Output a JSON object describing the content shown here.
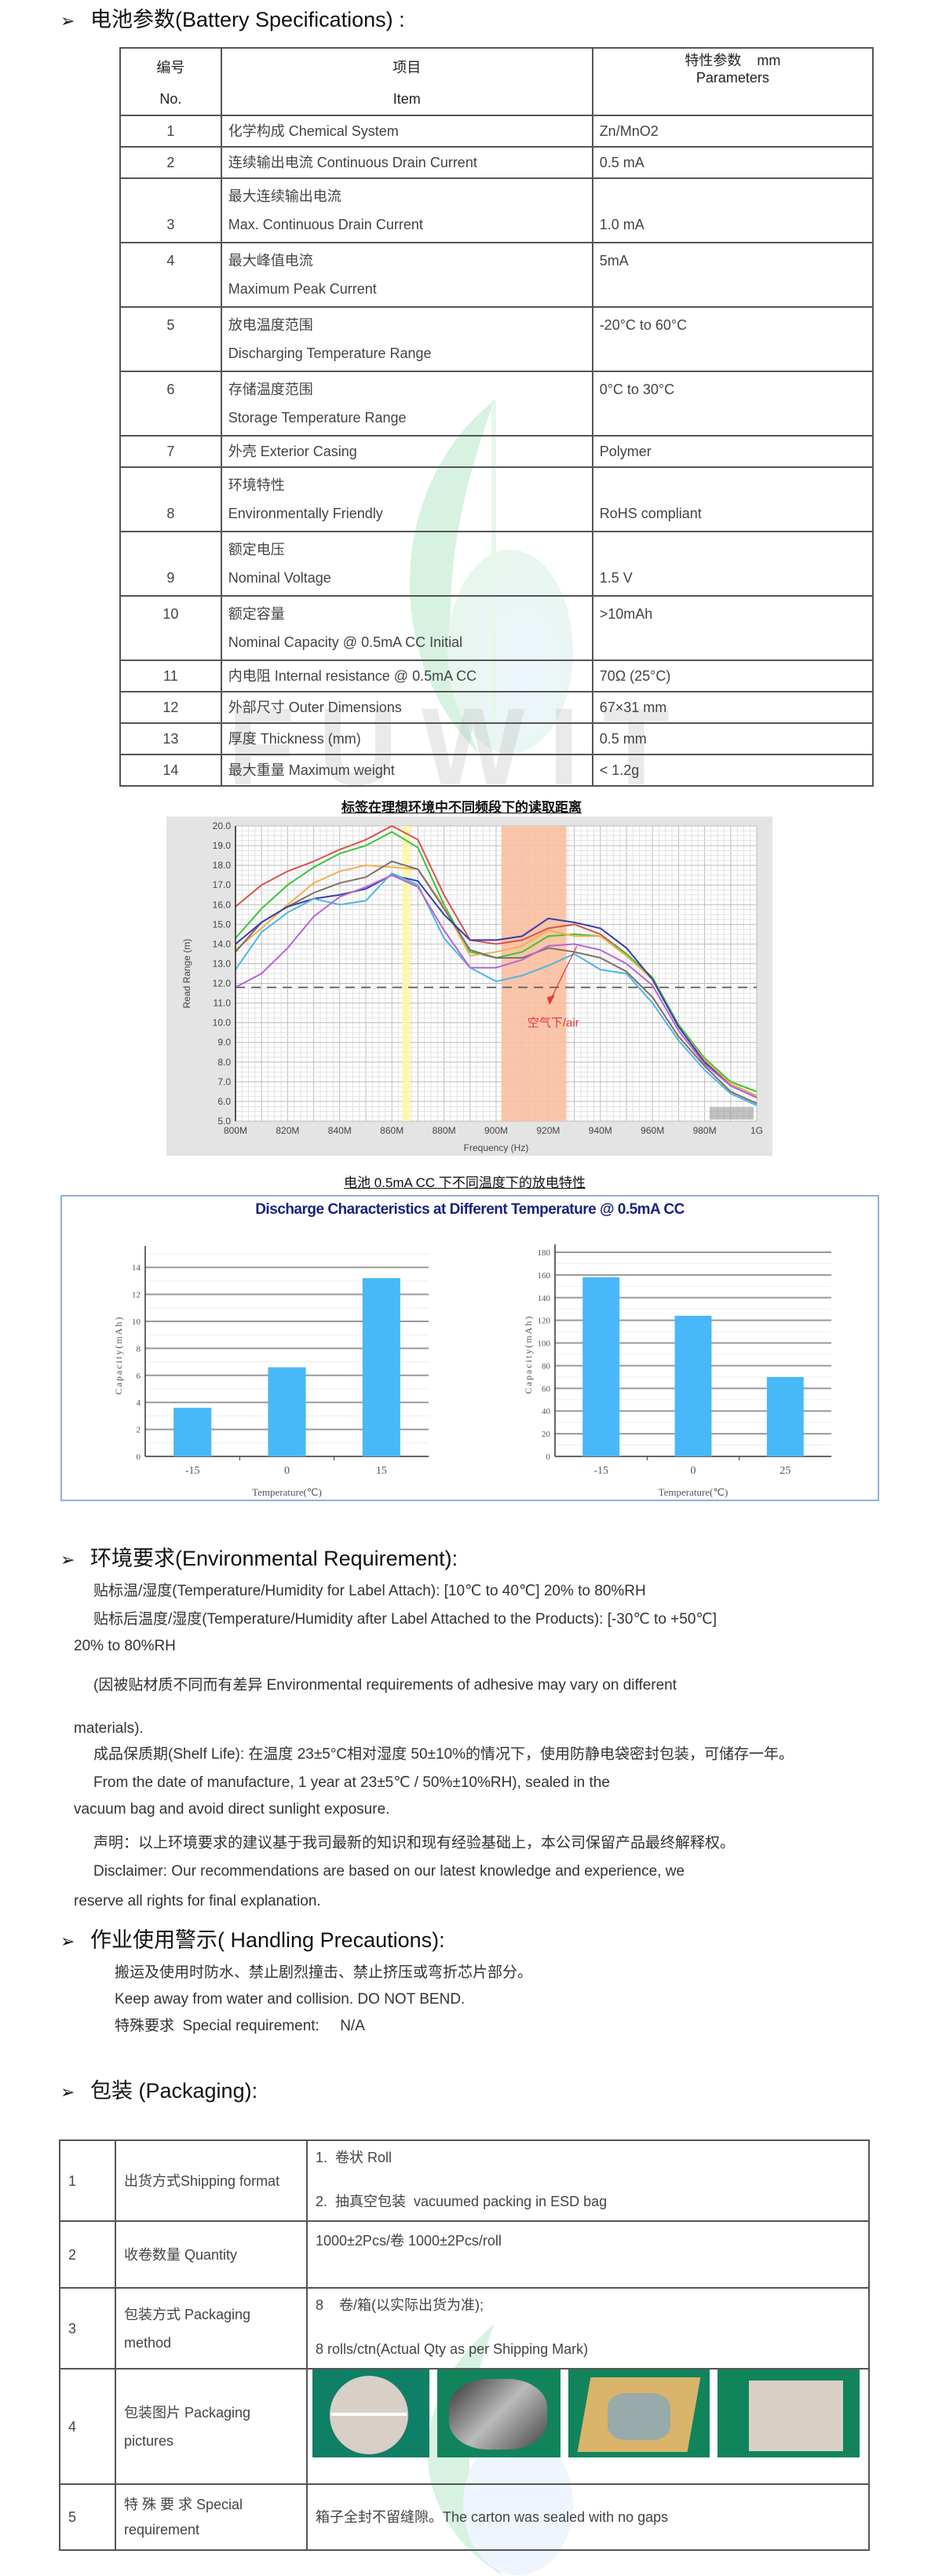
{
  "watermark": {
    "text": "FUWIT",
    "colors": [
      "#7fd49a",
      "#9cc8f0"
    ]
  },
  "battery": {
    "heading": "电池参数(Battery Specifications) :",
    "header": {
      "no_cn": "编号",
      "no_en": "No.",
      "item_cn": "项目",
      "item_en": "Item",
      "param_cn": "特性参数    mm",
      "param_en": "Parameters"
    },
    "rows": [
      {
        "no": "1",
        "item": [
          "化学构成 Chemical System"
        ],
        "value": "Zn/MnO2"
      },
      {
        "no": "2",
        "item": [
          "连续输出电流 Continuous Drain Current"
        ],
        "value": "0.5 mA"
      },
      {
        "no": "3",
        "item": [
          "最大连续输出电流",
          "Max. Continuous Drain Current"
        ],
        "value": "1.0 mA"
      },
      {
        "no": "4",
        "item": [
          "最大峰值电流",
          "Maximum Peak Current"
        ],
        "value": "5mA"
      },
      {
        "no": "5",
        "item": [
          "放电温度范围",
          "Discharging Temperature Range"
        ],
        "value": "-20°C to 60°C"
      },
      {
        "no": "6",
        "item": [
          "存储温度范围",
          "Storage Temperature Range"
        ],
        "value": "0°C to 30°C"
      },
      {
        "no": "7",
        "item": [
          "外壳 Exterior Casing"
        ],
        "value": "Polymer"
      },
      {
        "no": "8",
        "item": [
          "环境特性",
          "Environmentally Friendly"
        ],
        "value": "RoHS compliant"
      },
      {
        "no": "9",
        "item": [
          "额定电压",
          "Nominal Voltage"
        ],
        "value": "1.5 V"
      },
      {
        "no": "10",
        "item": [
          "额定容量",
          "Nominal Capacity @ 0.5mA CC Initial"
        ],
        "value": ">10mAh"
      },
      {
        "no": "11",
        "item": [
          "内电阻  Internal resistance @ 0.5mA CC"
        ],
        "value": "70Ω (25°C)"
      },
      {
        "no": "12",
        "item": [
          "外部尺寸 Outer Dimensions"
        ],
        "value": "67×31 mm"
      },
      {
        "no": "13",
        "item": [
          "厚度 Thickness (mm)"
        ],
        "value": "0.5 mm"
      },
      {
        "no": "14",
        "item": [
          "最大重量 Maximum weight"
        ],
        "value": "< 1.2g"
      }
    ]
  },
  "chart_data": [
    {
      "type": "line",
      "title": "标签在理想环境中不同频段下的读取距离",
      "xlabel": "Frequency (Hz)",
      "ylabel": "Read Range (m)",
      "x": [
        800,
        810,
        820,
        830,
        840,
        850,
        860,
        870,
        880,
        890,
        900,
        910,
        920,
        930,
        940,
        950,
        960,
        970,
        980,
        990,
        1000
      ],
      "xticks": [
        "800M",
        "820M",
        "840M",
        "860M",
        "880M",
        "900M",
        "920M",
        "940M",
        "960M",
        "980M",
        "1G"
      ],
      "xlim": [
        800,
        1000
      ],
      "ylim": [
        5,
        20
      ],
      "yticks": [
        "5.0",
        "6.0",
        "7.0",
        "8.0",
        "9.0",
        "10.0",
        "11.0",
        "12.0",
        "13.0",
        "14.0",
        "15.0",
        "16.0",
        "17.0",
        "18.0",
        "19.0",
        "20.0"
      ],
      "grid": true,
      "threshold": 11.8,
      "bands": [
        {
          "from": 864,
          "to": 867,
          "color": "#fbf7a8"
        },
        {
          "from": 902,
          "to": 927,
          "color": "#fbbfa0"
        }
      ],
      "annotation": "空气下/air",
      "annotation_color": "#e03a3a",
      "series": [
        {
          "color": "#d9534f",
          "values": [
            15.9,
            17.0,
            17.7,
            18.2,
            18.8,
            19.3,
            20.0,
            19.3,
            16.5,
            14.2,
            14.0,
            14.2,
            14.8,
            15.0,
            14.5,
            13.5,
            12.2,
            9.8,
            8.0,
            6.8,
            6.2
          ]
        },
        {
          "color": "#3cc43c",
          "values": [
            14.3,
            15.8,
            17.0,
            17.9,
            18.6,
            19.0,
            19.7,
            18.9,
            16.0,
            13.6,
            13.3,
            13.6,
            14.4,
            14.5,
            14.4,
            13.5,
            12.3,
            9.9,
            8.2,
            7.0,
            6.5
          ]
        },
        {
          "color": "#f2b04e",
          "values": [
            13.7,
            14.8,
            16.0,
            17.1,
            17.7,
            18.0,
            17.9,
            17.8,
            15.9,
            13.4,
            13.6,
            13.9,
            14.7,
            14.4,
            14.4,
            13.4,
            12.2,
            9.8,
            8.1,
            6.9,
            6.3
          ]
        },
        {
          "color": "#7f6f6f",
          "values": [
            13.6,
            15.1,
            15.9,
            16.6,
            17.1,
            17.4,
            18.2,
            17.8,
            15.8,
            13.7,
            13.3,
            13.3,
            13.8,
            13.6,
            13.3,
            12.6,
            11.3,
            9.3,
            7.8,
            6.5,
            5.9
          ]
        },
        {
          "color": "#3a3fa8",
          "values": [
            14.0,
            15.1,
            15.9,
            16.3,
            16.5,
            16.8,
            17.5,
            17.2,
            15.5,
            14.2,
            14.2,
            14.4,
            15.3,
            15.1,
            14.8,
            13.8,
            12.2,
            9.8,
            8.0,
            6.8,
            6.2
          ]
        },
        {
          "color": "#4fb6e0",
          "values": [
            12.7,
            14.6,
            15.6,
            16.3,
            16.0,
            16.2,
            17.6,
            17.0,
            14.3,
            12.8,
            12.1,
            12.4,
            12.9,
            13.5,
            12.7,
            12.5,
            11.0,
            9.1,
            7.6,
            6.4,
            5.8
          ]
        },
        {
          "color": "#b766d6",
          "values": [
            11.8,
            12.5,
            13.8,
            15.4,
            16.4,
            16.9,
            17.5,
            16.9,
            14.7,
            12.8,
            12.8,
            13.2,
            13.9,
            14.0,
            13.7,
            13.0,
            11.9,
            9.6,
            7.9,
            6.8,
            6.2
          ]
        }
      ]
    },
    {
      "type": "bar",
      "title": "Discharge Characteristics at Different Temperature @ 0.5mA CC",
      "xlabel": "Temperature(℃)",
      "ylabel": "Capacity(mAh)",
      "categories": [
        "-15",
        "0",
        "15"
      ],
      "values": [
        3.6,
        6.6,
        13.2
      ],
      "ylim": [
        0,
        15
      ],
      "yticks": [
        "0",
        "2",
        "4",
        "6",
        "8",
        "10",
        "12",
        "14"
      ],
      "bar_color": "#48b8f8",
      "grid": true
    },
    {
      "type": "bar",
      "xlabel": "Temperature(℃)",
      "ylabel": "Capacity(mAh)",
      "categories": [
        "-15",
        "0",
        "25"
      ],
      "values": [
        158,
        124,
        70
      ],
      "ylim": [
        0,
        180
      ],
      "yticks": [
        "0",
        "20",
        "40",
        "60",
        "80",
        "100",
        "120",
        "140",
        "160",
        "180"
      ],
      "bar_color": "#48b8f8",
      "grid": true
    }
  ],
  "discharge_caption": "电池 0.5mA CC 下不同温度下的放电特性",
  "environment": {
    "heading": "环境要求(Environmental Requirement):",
    "lines": [
      "贴标温/湿度(Temperature/Humidity for Label Attach): [10℃  to 40℃] 20% to 80%RH",
      "贴标后温度/湿度(Temperature/Humidity after Label Attached to the Products): [-30℃  to +50℃]",
      "20% to 80%RH",
      "(因被贴材质不同而有差异 Environmental requirements of adhesive may vary on different",
      "materials).",
      "成品保质期(Shelf Life): 在温度 23±5°C相对湿度 50±10%的情况下，使用防静电袋密封包装，可储存一年。",
      "From the date of manufacture, 1 year at 23±5℃  / 50%±10%RH), sealed in the",
      "vacuum bag and avoid direct sunlight exposure.",
      "声明：以上环境要求的建议基于我司最新的知识和现有经验基础上，本公司保留产品最终解释权。",
      "Disclaimer: Our recommendations are based on our latest knowledge and experience, we",
      "reserve all rights for final explanation."
    ]
  },
  "handling": {
    "heading": "作业使用警示( Handling Precautions):",
    "lines": [
      "搬运及使用时防水、禁止剧烈撞击、禁止挤压或弯折芯片部分。",
      "Keep away from water and collision. DO NOT BEND.",
      "特殊要求  Special requirement:     N/A"
    ]
  },
  "packaging": {
    "heading": "包装 (Packaging):",
    "rows": [
      {
        "no": "1",
        "item": "出货方式Shipping format",
        "value": [
          "1.  卷状 Roll",
          "2.  抽真空包装  vacuumed packing in ESD bag"
        ]
      },
      {
        "no": "2",
        "item": "收卷数量 Quantity",
        "value": [
          "1000±2Pcs/卷  1000±2Pcs/roll"
        ]
      },
      {
        "no": "3",
        "item": "包装方式 Packaging method",
        "value": [
          "8    卷/箱(以实际出货为准);",
          "8 rolls/ctn(Actual Qty as per Shipping Mark)"
        ]
      },
      {
        "no": "4",
        "item": "包装图片 Packaging pictures",
        "photos": [
          "roll-photo",
          "esd-bag-photo",
          "open-carton-photo",
          "sealed-carton-photo"
        ]
      },
      {
        "no": "5",
        "item": "特 殊 要 求  Special requirement",
        "value": [
          "箱子全封不留缝隙。The carton was sealed with no gaps"
        ]
      }
    ]
  }
}
